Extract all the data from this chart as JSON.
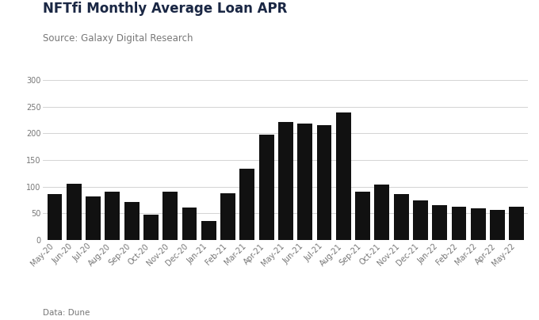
{
  "title": "NFTfi Monthly Average Loan APR",
  "subtitle": "Source: Galaxy Digital Research",
  "footnote": "Data: Dune",
  "categories": [
    "May-20",
    "Jun-20",
    "Jul-20",
    "Aug-20",
    "Sep-20",
    "Oct-20",
    "Nov-20",
    "Dec-20",
    "Jan-21",
    "Feb-21",
    "Mar-21",
    "Apr-21",
    "May-21",
    "Jun-21",
    "Jul-21",
    "Aug-21",
    "Sep-21",
    "Oct-21",
    "Nov-21",
    "Dec-21",
    "Jan-22",
    "Feb-22",
    "Mar-22",
    "Apr-22",
    "May-22"
  ],
  "values": [
    86,
    105,
    82,
    91,
    71,
    48,
    90,
    61,
    36,
    88,
    134,
    197,
    221,
    218,
    216,
    239,
    91,
    104,
    86,
    75,
    65,
    62,
    59,
    57,
    63
  ],
  "bar_color": "#111111",
  "background_color": "#ffffff",
  "ylim": [
    0,
    300
  ],
  "yticks": [
    0,
    50,
    100,
    150,
    200,
    250,
    300
  ],
  "title_fontsize": 12,
  "subtitle_fontsize": 8.5,
  "footnote_fontsize": 7.5,
  "tick_fontsize": 7,
  "title_color": "#1a2744",
  "subtitle_color": "#777777",
  "footnote_color": "#777777",
  "tick_color": "#777777",
  "grid_color": "#cccccc"
}
